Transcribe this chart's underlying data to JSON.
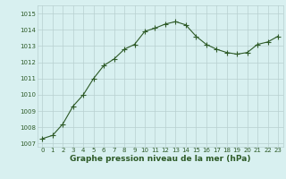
{
  "x": [
    0,
    1,
    2,
    3,
    4,
    5,
    6,
    7,
    8,
    9,
    10,
    11,
    12,
    13,
    14,
    15,
    16,
    17,
    18,
    19,
    20,
    21,
    22,
    23
  ],
  "y": [
    1007.3,
    1007.5,
    1008.2,
    1009.3,
    1010.0,
    1011.0,
    1011.8,
    1012.2,
    1012.8,
    1013.1,
    1013.9,
    1014.1,
    1014.35,
    1014.5,
    1014.3,
    1013.6,
    1013.1,
    1012.8,
    1012.6,
    1012.5,
    1012.6,
    1013.1,
    1013.25,
    1013.6
  ],
  "line_color": "#2d5a27",
  "marker": "+",
  "marker_size": 4,
  "bg_color": "#d8f0f0",
  "grid_color": "#b8d0d0",
  "ylim": [
    1006.8,
    1015.5
  ],
  "yticks": [
    1007,
    1008,
    1009,
    1010,
    1011,
    1012,
    1013,
    1014,
    1015
  ],
  "xticks": [
    0,
    1,
    2,
    3,
    4,
    5,
    6,
    7,
    8,
    9,
    10,
    11,
    12,
    13,
    14,
    15,
    16,
    17,
    18,
    19,
    20,
    21,
    22,
    23
  ],
  "xlabel": "Graphe pression niveau de la mer (hPa)",
  "xlabel_fontsize": 6.5,
  "tick_fontsize": 5.0,
  "xlabel_color": "#2d5a27"
}
